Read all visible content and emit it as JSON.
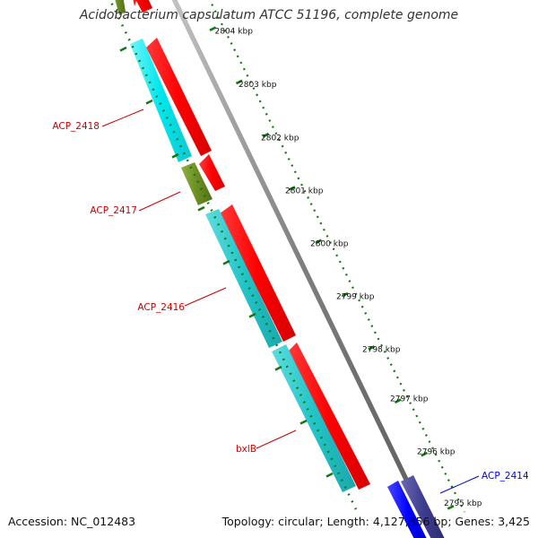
{
  "title": "Acidobacterium capsulatum ATCC 51196, complete genome",
  "footer": {
    "accession": "Accession: NC_012483",
    "summary": "Topology: circular; Length: 4,127,356 bp; Genes: 3,425"
  },
  "scale_labels": [
    "2804 kbp",
    "2803 kbp",
    "2802 kbp",
    "2801 kbp",
    "2800 kbp",
    "2799 kbp",
    "2798 kbp",
    "2797 kbp",
    "2796 kbp",
    "2795 kbp"
  ],
  "genes": [
    {
      "name": "ACP_2418",
      "color": "#cc0000"
    },
    {
      "name": "ACP_2417",
      "color": "#cc0000"
    },
    {
      "name": "ACP_2416",
      "color": "#cc0000"
    },
    {
      "name": "bxlB",
      "color": "#cc0000"
    },
    {
      "name": "ACP_2414",
      "color": "#0000dd"
    }
  ],
  "colors": {
    "forward_cds": "#ff0000",
    "cog_cyan": "#00e5ee",
    "cog_teal": "#22c4c8",
    "cog_olive": "#6b8e23",
    "cog_blue": "#0000ff",
    "cog_navy": "#3c3c8c",
    "tick_green": "#117711",
    "backbone": "#7f7f7f"
  }
}
